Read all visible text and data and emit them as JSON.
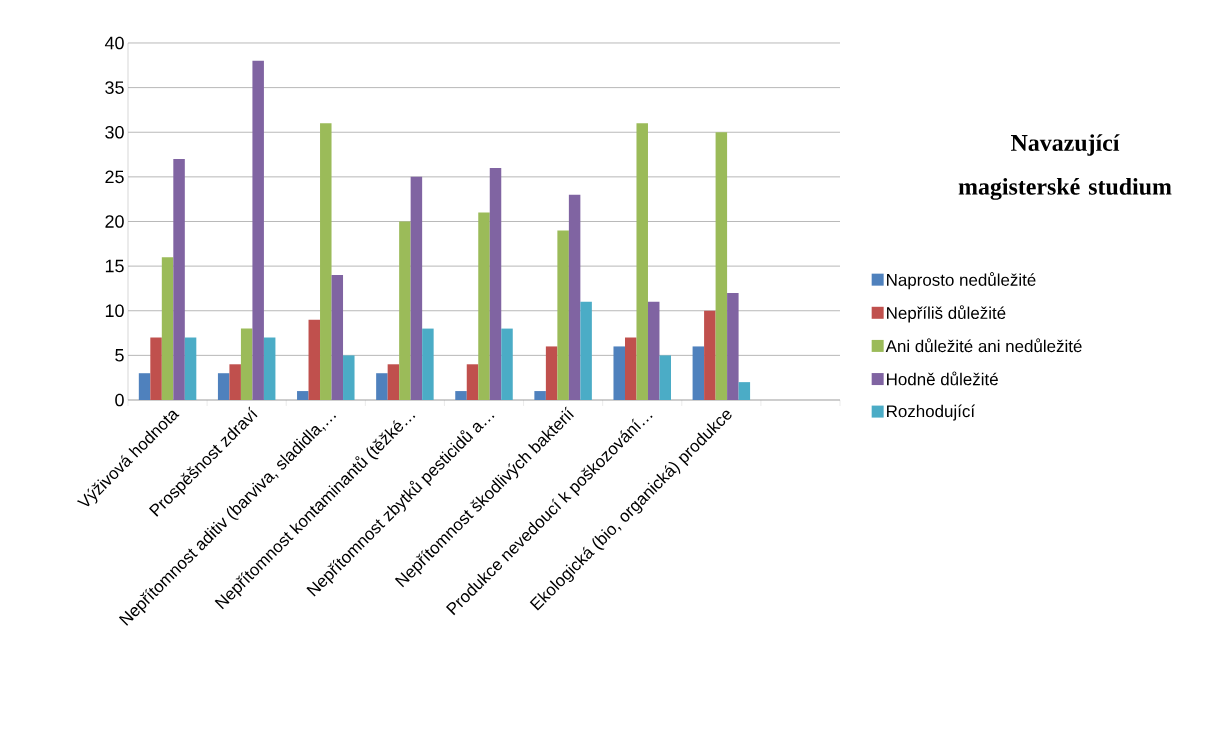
{
  "chart_data": {
    "type": "bar",
    "title": "Navazující magisterské studium",
    "categories": [
      "Výživová hodnota",
      "Prospěšnost zdraví",
      "Nepřítomnost aditiv (barviva, sladidla,…",
      "Nepřítomnost kontaminantů (těžké…",
      "Nepřítomnost zbytků pesticidů a…",
      "Nepřítomnost škodlivých bakterií",
      "Produkce nevedoucí k poškozování…",
      "Ekologická (bio, organická) produkce",
      null
    ],
    "series": [
      {
        "name": "Naprosto nedůležité",
        "color": "#4f81bd",
        "values": [
          3,
          3,
          1,
          3,
          1,
          1,
          6,
          6,
          null
        ]
      },
      {
        "name": "Nepříliš důležité",
        "color": "#c0504d",
        "values": [
          7,
          4,
          9,
          4,
          4,
          6,
          7,
          10,
          null
        ]
      },
      {
        "name": "Ani důležité ani nedůležité",
        "color": "#9bbb59",
        "values": [
          16,
          8,
          31,
          20,
          21,
          19,
          31,
          30,
          null
        ]
      },
      {
        "name": "Hodně důležité",
        "color": "#8064a2",
        "values": [
          27,
          38,
          14,
          25,
          26,
          23,
          11,
          12,
          null
        ]
      },
      {
        "name": "Rozhodující",
        "color": "#4bacc6",
        "values": [
          7,
          7,
          5,
          8,
          8,
          11,
          5,
          2,
          null
        ]
      }
    ],
    "ylim": [
      0,
      40
    ],
    "yticks": [
      0,
      5,
      10,
      15,
      20,
      25,
      30,
      35,
      40
    ],
    "grid": "y",
    "legend": "right"
  }
}
